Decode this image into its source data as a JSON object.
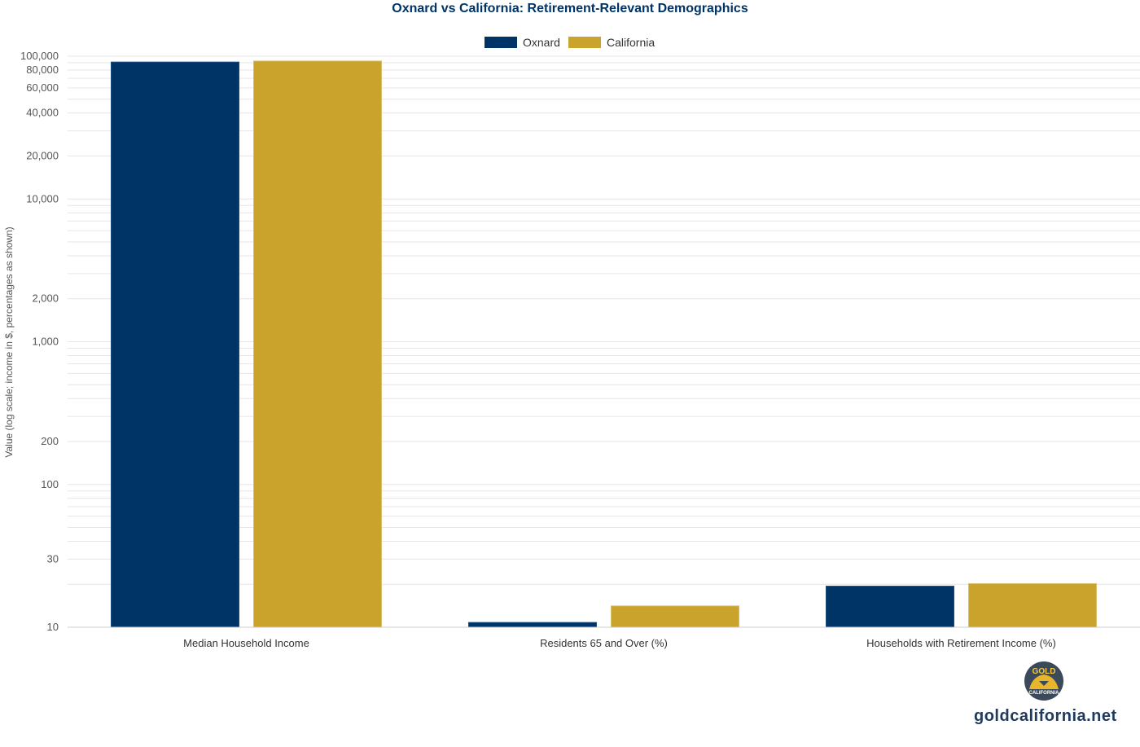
{
  "colors": {
    "oxnard": "#003366",
    "california": "#C9A32B",
    "title": "#003366",
    "brand": "#1e3a5f",
    "grid": "#e6e6e6"
  },
  "chart_data": {
    "type": "bar",
    "title": "Oxnard vs California: Retirement-Relevant Demographics",
    "xlabel": "",
    "ylabel": "Value (log scale; income in $, percentages as shown)",
    "yscale": "log",
    "ylim": [
      10,
      100000
    ],
    "yticks": [
      10,
      30,
      100,
      200,
      1000,
      2000,
      10000,
      20000,
      40000,
      60000,
      80000,
      100000
    ],
    "ytick_labels": [
      "10",
      "30",
      "100",
      "200",
      "1,000",
      "2,000",
      "10,000",
      "20,000",
      "40,000",
      "60,000",
      "80,000",
      "100,000"
    ],
    "grid": true,
    "legend_position": "top-center",
    "categories": [
      "Median Household Income",
      "Residents 65 and Over (%)",
      "Households with Retirement Income (%)"
    ],
    "series": [
      {
        "name": "Oxnard",
        "values": [
          91000,
          10.8,
          19.4
        ]
      },
      {
        "name": "California",
        "values": [
          92500,
          14.1,
          20.2
        ]
      }
    ]
  },
  "logo": {
    "top_text": "GOLD",
    "bottom_text": "CALIFORNIA"
  },
  "footer": {
    "site": "goldcalifornia.net"
  }
}
